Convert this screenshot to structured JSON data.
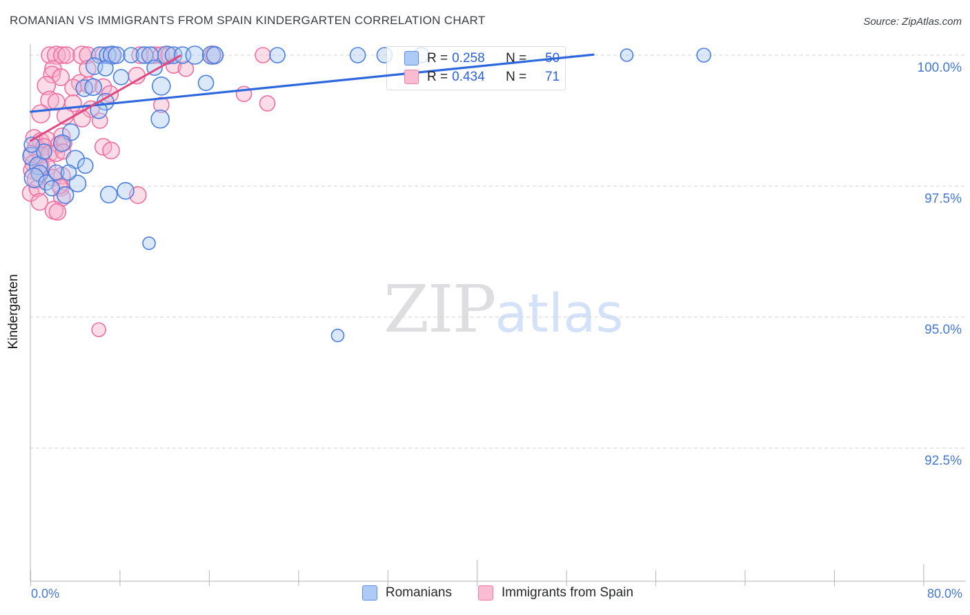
{
  "header": {
    "title": "ROMANIAN VS IMMIGRANTS FROM SPAIN KINDERGARTEN CORRELATION CHART",
    "source": "Source: ZipAtlas.com"
  },
  "legend_box": {
    "r_label": "R =",
    "n_label": "N =",
    "rows": [
      {
        "series": "Romanians",
        "r": "0.258",
        "n": "50"
      },
      {
        "series": "Immigrants from Spain",
        "r": "0.434",
        "n": "71"
      }
    ]
  },
  "y_axis": {
    "title": "Kindergarten",
    "tick_labels": [
      "100.0%",
      "97.5%",
      "95.0%",
      "92.5%"
    ],
    "tick_values": [
      100,
      97.5,
      95,
      92.5
    ]
  },
  "x_axis": {
    "min_label": "0.0%",
    "max_label": "80.0%",
    "tick_values": [
      0,
      8,
      16,
      24,
      32,
      40,
      48,
      56,
      64,
      72,
      80
    ]
  },
  "bottom_legend": [
    {
      "label": "Romanians"
    },
    {
      "label": "Immigrants from Spain"
    }
  ],
  "watermark": {
    "part1": "ZIP",
    "part2": "atlas"
  },
  "colors": {
    "blue_stroke": "#4a7ede",
    "blue_fill": "#a9c8f2",
    "pink_stroke": "#ef6d9f",
    "pink_fill": "#f6aec7",
    "trend_blue": "#2d67dd",
    "trend_pink": "#e2477e",
    "axis_label_blue": "#4478d4",
    "grid": "#d2d2d2",
    "axis": "#b3b3b3"
  },
  "chart_data": {
    "type": "scatter",
    "title": "Romanian vs Immigrants from Spain Kindergarten",
    "xlabel": "",
    "ylabel": "Kindergarten",
    "xlim": [
      0,
      80
    ],
    "ylim": [
      89.95,
      100.2
    ],
    "x_unit": "%",
    "y_unit": "%",
    "grid": "dashed-horizontal",
    "legend_position": "top-center",
    "gridlines_y": [
      100,
      97.5,
      95,
      92.5
    ],
    "series": [
      {
        "name": "Romanians",
        "R": 0.258,
        "N": 50,
        "points": [
          [
            6.2,
            100,
            12
          ],
          [
            6.9,
            100,
            12
          ],
          [
            7.3,
            100,
            13
          ],
          [
            7.7,
            100,
            12
          ],
          [
            9.0,
            100,
            11
          ],
          [
            10.2,
            100,
            12
          ],
          [
            10.7,
            100,
            12
          ],
          [
            12.2,
            100,
            13
          ],
          [
            12.8,
            100,
            12
          ],
          [
            13.6,
            100,
            12
          ],
          [
            14.7,
            100,
            13
          ],
          [
            16.2,
            100,
            13
          ],
          [
            16.5,
            100,
            12
          ],
          [
            22.1,
            100,
            11
          ],
          [
            29.3,
            100,
            11
          ],
          [
            31.7,
            100,
            11
          ],
          [
            35.0,
            100,
            11
          ],
          [
            53.4,
            100,
            9
          ],
          [
            60.3,
            100,
            10
          ],
          [
            5.7,
            99.79,
            12
          ],
          [
            6.7,
            99.75,
            11
          ],
          [
            11.1,
            99.76,
            11
          ],
          [
            4.8,
            99.37,
            12
          ],
          [
            5.6,
            99.39,
            12
          ],
          [
            11.7,
            99.41,
            13
          ],
          [
            15.7,
            99.47,
            11
          ],
          [
            11.6,
            98.78,
            13
          ],
          [
            6.7,
            99.11,
            12
          ],
          [
            6.1,
            98.95,
            12
          ],
          [
            8.1,
            99.58,
            11
          ],
          [
            3.6,
            98.53,
            12
          ],
          [
            2.8,
            98.32,
            12
          ],
          [
            0.1,
            98.07,
            13
          ],
          [
            4.0,
            98.01,
            13
          ],
          [
            0.7,
            97.89,
            13
          ],
          [
            0.8,
            97.74,
            12
          ],
          [
            0.3,
            97.66,
            14
          ],
          [
            4.2,
            97.55,
            12
          ],
          [
            3.1,
            97.33,
            12
          ],
          [
            8.5,
            97.41,
            12
          ],
          [
            7.0,
            97.34,
            12
          ],
          [
            1.4,
            97.57,
            11
          ],
          [
            1.9,
            97.46,
            11
          ],
          [
            2.3,
            97.76,
            11
          ],
          [
            1.2,
            98.16,
            11
          ],
          [
            3.4,
            97.76,
            11
          ],
          [
            4.9,
            97.89,
            11
          ],
          [
            0.1,
            98.29,
            11
          ],
          [
            10.6,
            96.41,
            9
          ],
          [
            27.5,
            94.65,
            9
          ]
        ]
      },
      {
        "name": "Immigrants from Spain",
        "R": 0.434,
        "N": 71,
        "points": [
          [
            1.7,
            100,
            12
          ],
          [
            2.3,
            100,
            13
          ],
          [
            2.8,
            100,
            12
          ],
          [
            3.2,
            100,
            12
          ],
          [
            4.6,
            100,
            13
          ],
          [
            5.1,
            100,
            12
          ],
          [
            6.5,
            100,
            12
          ],
          [
            7.3,
            100,
            12
          ],
          [
            9.8,
            100,
            12
          ],
          [
            11.1,
            100,
            12
          ],
          [
            11.7,
            100,
            12
          ],
          [
            12.4,
            100,
            12
          ],
          [
            16.4,
            100,
            13
          ],
          [
            20.8,
            100,
            11
          ],
          [
            2.0,
            99.74,
            12
          ],
          [
            5.1,
            99.74,
            12
          ],
          [
            1.9,
            99.63,
            12
          ],
          [
            2.7,
            99.58,
            12
          ],
          [
            4.4,
            99.47,
            12
          ],
          [
            5.2,
            99.43,
            12
          ],
          [
            1.4,
            99.42,
            13
          ],
          [
            3.8,
            99.38,
            12
          ],
          [
            6.5,
            99.39,
            12
          ],
          [
            7.1,
            99.26,
            12
          ],
          [
            19.1,
            99.26,
            11
          ],
          [
            12.8,
            99.8,
            11
          ],
          [
            9.5,
            99.61,
            12
          ],
          [
            13.9,
            99.74,
            11
          ],
          [
            1.7,
            99.14,
            13
          ],
          [
            2.3,
            99.11,
            12
          ],
          [
            3.8,
            99.08,
            12
          ],
          [
            5.4,
            98.97,
            12
          ],
          [
            0.9,
            98.88,
            13
          ],
          [
            3.1,
            98.84,
            12
          ],
          [
            4.6,
            98.79,
            12
          ],
          [
            6.2,
            98.75,
            11
          ],
          [
            11.7,
            99.05,
            11
          ],
          [
            21.2,
            99.08,
            11
          ],
          [
            0.3,
            98.42,
            12
          ],
          [
            0.9,
            98.36,
            12
          ],
          [
            1.5,
            98.38,
            12
          ],
          [
            2.8,
            98.45,
            12
          ],
          [
            0.5,
            98.22,
            13
          ],
          [
            1.2,
            98.25,
            12
          ],
          [
            2.5,
            98.29,
            12
          ],
          [
            3.0,
            98.32,
            11
          ],
          [
            0.1,
            98.12,
            12
          ],
          [
            0.9,
            98.09,
            12
          ],
          [
            1.7,
            98.13,
            12
          ],
          [
            2.3,
            98.13,
            12
          ],
          [
            2.9,
            98.16,
            11
          ],
          [
            0.3,
            97.93,
            13
          ],
          [
            0.9,
            97.89,
            12
          ],
          [
            1.5,
            97.86,
            12
          ],
          [
            0.1,
            97.8,
            12
          ],
          [
            0.8,
            97.74,
            12
          ],
          [
            2.8,
            97.7,
            12
          ],
          [
            0.5,
            97.63,
            13
          ],
          [
            2.0,
            97.66,
            12
          ],
          [
            6.5,
            98.25,
            12
          ],
          [
            7.2,
            98.18,
            12
          ],
          [
            0.0,
            97.37,
            12
          ],
          [
            0.6,
            97.46,
            12
          ],
          [
            2.7,
            97.47,
            12
          ],
          [
            2.8,
            97.28,
            12
          ],
          [
            0.8,
            97.2,
            12
          ],
          [
            2.1,
            97.04,
            13
          ],
          [
            2.4,
            97.01,
            12
          ],
          [
            9.6,
            97.33,
            12
          ],
          [
            2.6,
            97.5,
            11
          ],
          [
            6.1,
            94.76,
            10
          ]
        ]
      }
    ],
    "trend_lines": [
      {
        "series": "Romanians",
        "x1": 0,
        "y1": 98.92,
        "x2": 50.4,
        "y2": 100.01
      },
      {
        "series": "Immigrants from Spain",
        "x1": 0,
        "y1": 98.37,
        "x2": 13.4,
        "y2": 99.99
      }
    ]
  }
}
